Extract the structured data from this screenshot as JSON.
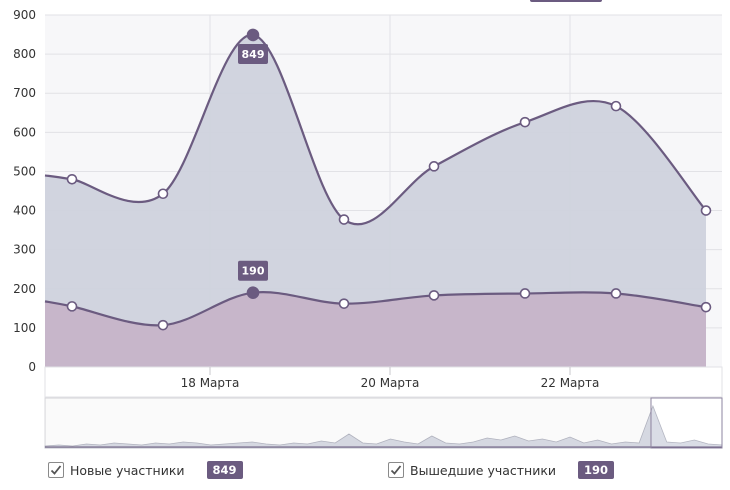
{
  "chart_data": {
    "type": "area",
    "x_ticks": [
      "18 Марта",
      "20 Марта",
      "22 Марта"
    ],
    "y_ticks": [
      "900",
      "800",
      "700",
      "600",
      "500",
      "400",
      "300",
      "200",
      "100",
      "0"
    ],
    "ylim": [
      0,
      900
    ],
    "grid": true,
    "series": [
      {
        "name": "Новые участники",
        "color": "#6b5b80",
        "fill": "#cfd2dd",
        "values": [
          480,
          443,
          849,
          377,
          513,
          626,
          667,
          400
        ],
        "highlight_index": 2,
        "highlight_label": "849"
      },
      {
        "name": "Вышедшие участники",
        "color": "#6b5b80",
        "fill": "#c6b4c8",
        "values": [
          155,
          107,
          190,
          162,
          183,
          188,
          188,
          153
        ],
        "highlight_index": 2,
        "highlight_label": "190"
      }
    ]
  },
  "legend": {
    "new": {
      "label": "Новые участники",
      "value": "849"
    },
    "left": {
      "label": "Вышедшие участники",
      "value": "190"
    }
  }
}
